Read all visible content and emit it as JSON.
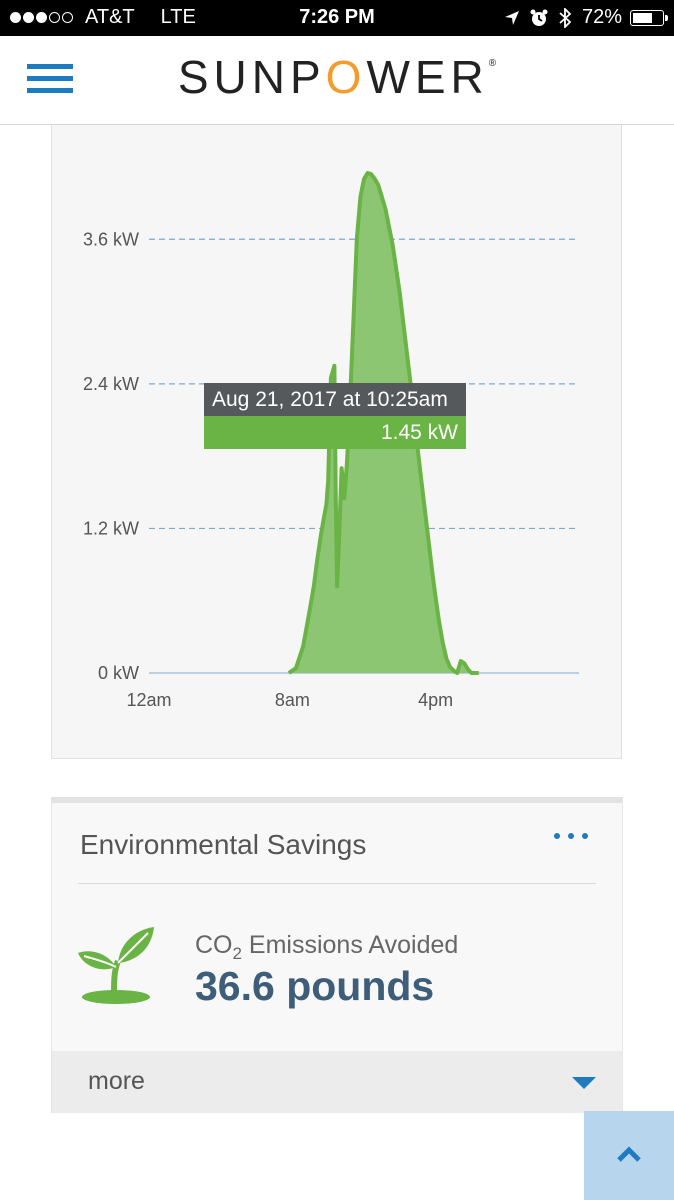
{
  "status_bar": {
    "carrier": "AT&T",
    "network": "LTE",
    "time": "7:26 PM",
    "battery": "72%",
    "battery_level": 0.72
  },
  "header": {
    "brand": "SUNPOWER"
  },
  "chart_data": {
    "type": "area",
    "x_ticks": [
      "12am",
      "8am",
      "4pm"
    ],
    "y_ticks": [
      "0 kW",
      "1.2 kW",
      "2.4 kW",
      "3.6 kW"
    ],
    "ylim": [
      0,
      4.2
    ],
    "xlim": [
      0,
      24
    ],
    "grid": true,
    "color": "#6ab345",
    "x": [
      7.8,
      8.2,
      8.6,
      9.0,
      9.2,
      9.4,
      9.6,
      9.75,
      9.9,
      10.0,
      10.15,
      10.35,
      10.42,
      10.5,
      10.6,
      10.75,
      10.9,
      11.05,
      11.2,
      11.4,
      11.6,
      11.8,
      12.0,
      12.2,
      12.4,
      12.6,
      12.8,
      13.0,
      13.2,
      13.4,
      13.6,
      13.8,
      14.0,
      14.2,
      14.4,
      14.6,
      14.8,
      15.0,
      15.2,
      15.4,
      15.6,
      15.8,
      16.0,
      16.2,
      16.4,
      16.6,
      16.8,
      17.0,
      17.2,
      17.4,
      17.6,
      17.8,
      18.0,
      18.2,
      18.4
    ],
    "values": [
      0.0,
      0.04,
      0.22,
      0.55,
      0.72,
      0.95,
      1.15,
      1.28,
      1.4,
      1.6,
      2.45,
      2.55,
      1.5,
      0.72,
      1.08,
      1.7,
      1.45,
      1.75,
      2.2,
      2.9,
      3.6,
      3.95,
      4.1,
      4.15,
      4.14,
      4.1,
      4.05,
      3.95,
      3.85,
      3.7,
      3.55,
      3.35,
      3.15,
      2.9,
      2.65,
      2.4,
      2.1,
      1.85,
      1.6,
      1.35,
      1.1,
      0.85,
      0.62,
      0.42,
      0.25,
      0.12,
      0.05,
      0.02,
      0.0,
      0.1,
      0.08,
      0.03,
      0.0,
      0.0,
      0.0
    ],
    "tooltip": {
      "title": "Aug 21, 2017 at 10:25am",
      "value": "1.45 kW"
    }
  },
  "environmental_savings": {
    "title": "Environmental Savings",
    "co2_label_prefix": "CO",
    "co2_label_sub": "2",
    "co2_label_suffix": " Emissions Avoided",
    "co2_value": "36.6 pounds",
    "more_label": "more"
  },
  "icons": {
    "menu": "hamburger-menu-icon",
    "more": "more-horizontal-icon",
    "plant": "sprout-icon",
    "caret": "caret-down-icon",
    "scroll_top": "chevron-up-icon"
  },
  "colors": {
    "accent_blue": "#1f7bbf",
    "chart_green": "#6ab345",
    "value_blue": "#3d5d78",
    "brand_orange": "#f39c2b"
  }
}
